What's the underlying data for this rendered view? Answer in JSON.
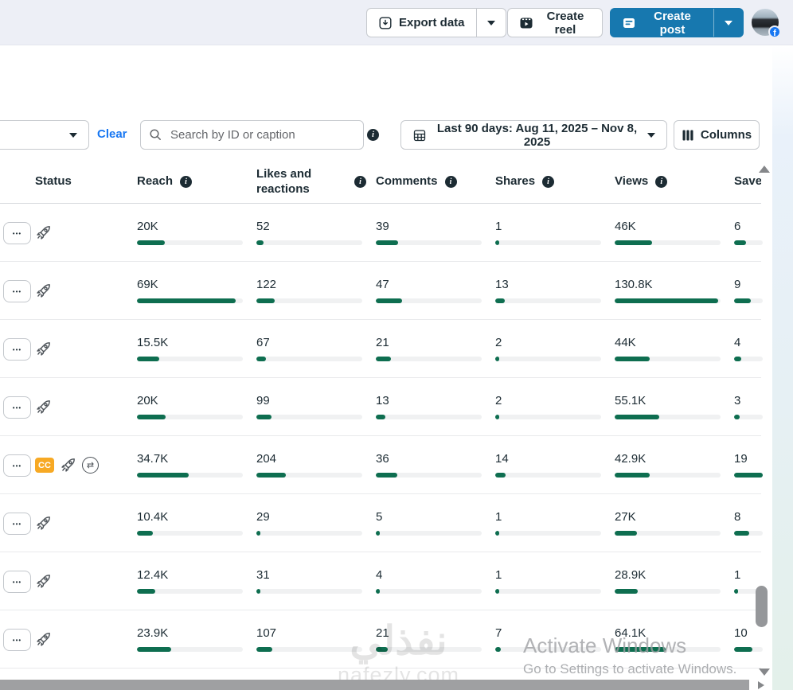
{
  "topbar": {
    "export_label": "Export data",
    "create_reel_label": "Create reel",
    "create_post_label": "Create post"
  },
  "filters": {
    "clear_label": "Clear",
    "search_placeholder": "Search by ID or caption",
    "date_range_label": "Last 90 days: Aug 11, 2025 – Nov 8, 2025",
    "columns_label": "Columns"
  },
  "table": {
    "more_label": "•••",
    "columns": [
      "Status",
      "Reach",
      "Likes and reactions",
      "Comments",
      "Shares",
      "Views",
      "Saves"
    ],
    "rows": [
      {
        "badges": [
          "rocket"
        ],
        "reach": "20K",
        "reach_pct": 26,
        "likes": "52",
        "likes_pct": 7,
        "comments": "39",
        "comments_pct": 21,
        "shares": "1",
        "shares_pct": 2,
        "views": "46K",
        "views_pct": 35,
        "saves": "6",
        "saves_pct": 11
      },
      {
        "badges": [
          "rocket"
        ],
        "reach": "69K",
        "reach_pct": 93,
        "likes": "122",
        "likes_pct": 17,
        "comments": "47",
        "comments_pct": 25,
        "shares": "13",
        "shares_pct": 9,
        "views": "130.8K",
        "views_pct": 98,
        "saves": "9",
        "saves_pct": 16
      },
      {
        "badges": [
          "rocket"
        ],
        "reach": "15.5K",
        "reach_pct": 21,
        "likes": "67",
        "likes_pct": 9,
        "comments": "21",
        "comments_pct": 14,
        "shares": "2",
        "shares_pct": 2,
        "views": "44K",
        "views_pct": 33,
        "saves": "4",
        "saves_pct": 7
      },
      {
        "badges": [
          "rocket"
        ],
        "reach": "20K",
        "reach_pct": 27,
        "likes": "99",
        "likes_pct": 14,
        "comments": "13",
        "comments_pct": 9,
        "shares": "2",
        "shares_pct": 2,
        "views": "55.1K",
        "views_pct": 42,
        "saves": "3",
        "saves_pct": 5
      },
      {
        "badges": [
          "cc",
          "rocket",
          "crosspost"
        ],
        "reach": "34.7K",
        "reach_pct": 49,
        "likes": "204",
        "likes_pct": 28,
        "comments": "36",
        "comments_pct": 20,
        "shares": "14",
        "shares_pct": 10,
        "views": "42.9K",
        "views_pct": 33,
        "saves": "19",
        "saves_pct": 60
      },
      {
        "badges": [
          "rocket"
        ],
        "reach": "10.4K",
        "reach_pct": 15,
        "likes": "29",
        "likes_pct": 4,
        "comments": "5",
        "comments_pct": 3,
        "shares": "1",
        "shares_pct": 2,
        "views": "27K",
        "views_pct": 21,
        "saves": "8",
        "saves_pct": 14
      },
      {
        "badges": [
          "rocket"
        ],
        "reach": "12.4K",
        "reach_pct": 17,
        "likes": "31",
        "likes_pct": 4,
        "comments": "4",
        "comments_pct": 2,
        "shares": "1",
        "shares_pct": 2,
        "views": "28.9K",
        "views_pct": 22,
        "saves": "1",
        "saves_pct": 2
      },
      {
        "badges": [
          "rocket"
        ],
        "reach": "23.9K",
        "reach_pct": 32,
        "likes": "107",
        "likes_pct": 15,
        "comments": "21",
        "comments_pct": 11,
        "shares": "7",
        "shares_pct": 5,
        "views": "64.1K",
        "views_pct": 48,
        "saves": "10",
        "saves_pct": 17
      }
    ]
  },
  "icons": {
    "cc_label": "CC",
    "info_glyph": "i",
    "crosspost_glyph": "⇄"
  },
  "watermark": {
    "logo_text": "نفذلي",
    "domain": "nafezly.com"
  },
  "activation": {
    "line1": "Activate Windows",
    "line2": "Go to Settings to activate Windows."
  },
  "colors": {
    "bar_green": "#0e6e50",
    "link_blue": "#1877f2",
    "create_post_blue": "#1778af",
    "cc_yellow": "#f7a924",
    "bar_track": "#f0f1f2",
    "topbar_bg": "#edeff6"
  }
}
